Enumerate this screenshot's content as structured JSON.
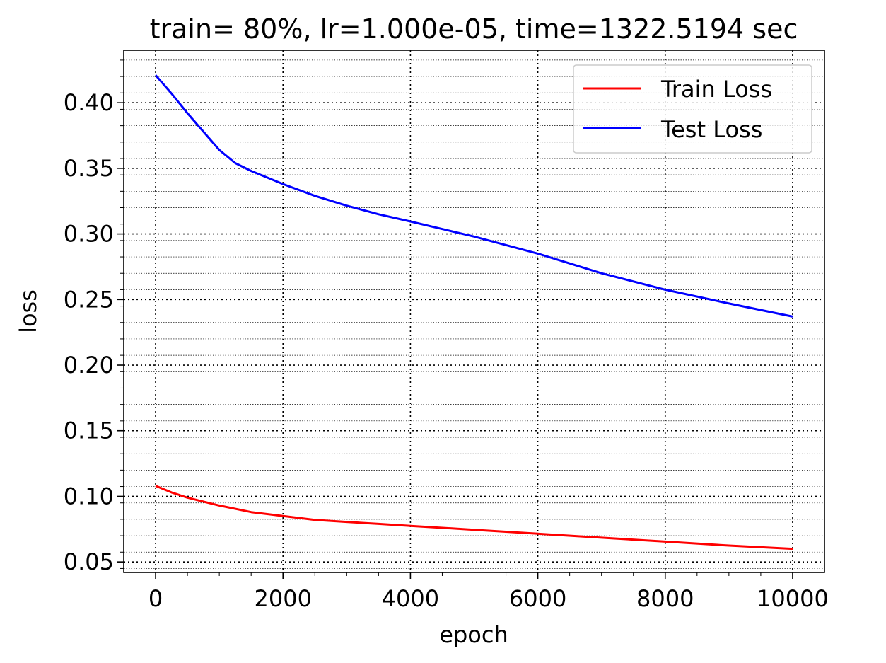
{
  "chart_data": {
    "type": "line",
    "title": "train= 80%, lr=1.000e-05, time=1322.5194 sec",
    "xlabel": "epoch",
    "ylabel": "loss",
    "xlim": [
      -500,
      10500
    ],
    "ylim": [
      0.042,
      0.44
    ],
    "xticks": [
      0,
      2000,
      4000,
      6000,
      8000,
      10000
    ],
    "xtick_labels": [
      "0",
      "2000",
      "4000",
      "6000",
      "8000",
      "10000"
    ],
    "yticks": [
      0.05,
      0.1,
      0.15,
      0.2,
      0.25,
      0.3,
      0.35,
      0.4
    ],
    "ytick_labels": [
      "0.05",
      "0.10",
      "0.15",
      "0.20",
      "0.25",
      "0.30",
      "0.35",
      "0.40"
    ],
    "grid": "major and minor, dotted",
    "legend_position": "top-right",
    "series": [
      {
        "name": "Train Loss",
        "color": "#ff0000",
        "x": [
          0,
          250,
          500,
          1000,
          1500,
          2000,
          2500,
          3000,
          3500,
          4000,
          5000,
          6000,
          7000,
          8000,
          9000,
          10000
        ],
        "y": [
          0.108,
          0.103,
          0.099,
          0.093,
          0.088,
          0.085,
          0.082,
          0.0805,
          0.079,
          0.0775,
          0.0745,
          0.0715,
          0.0685,
          0.0655,
          0.0625,
          0.06
        ]
      },
      {
        "name": "Test Loss",
        "color": "#0000ff",
        "x": [
          0,
          250,
          500,
          750,
          1000,
          1250,
          1500,
          2000,
          2500,
          3000,
          3500,
          4000,
          5000,
          6000,
          7000,
          8000,
          9000,
          10000
        ],
        "y": [
          0.421,
          0.407,
          0.392,
          0.378,
          0.364,
          0.354,
          0.348,
          0.338,
          0.329,
          0.3215,
          0.315,
          0.3095,
          0.298,
          0.285,
          0.27,
          0.2575,
          0.247,
          0.237
        ]
      }
    ]
  }
}
